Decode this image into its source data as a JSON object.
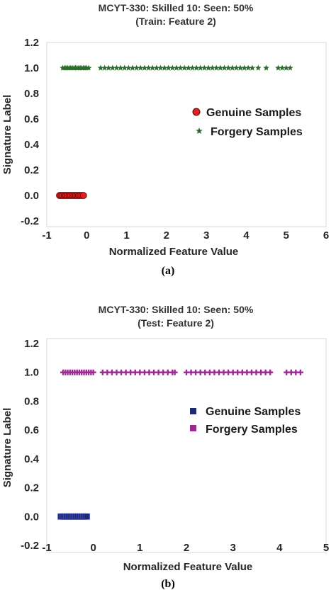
{
  "chart_data": [
    {
      "type": "scatter",
      "title": "MCYT-330:  Skilled 10: Seen: 50%",
      "subtitle": "(Train: Feature 2)",
      "xlabel": "Normalized Feature Value",
      "ylabel": "Signature Label",
      "caption": "(a)",
      "xlim": [
        -1,
        6
      ],
      "ylim": [
        -0.2,
        1.2
      ],
      "xticks": [
        "-1",
        "0",
        "1",
        "2",
        "3",
        "4",
        "5",
        "6"
      ],
      "yticks": [
        "-0.2",
        "0.0",
        "0.2",
        "0.4",
        "0.6",
        "0.8",
        "1.0",
        "1.2"
      ],
      "legend_position": "right",
      "grid": false,
      "series": [
        {
          "name": "Genuine Samples",
          "color": "#e02020",
          "marker": "circle",
          "y": 0,
          "x": [
            -0.68,
            -0.64,
            -0.6,
            -0.56,
            -0.52,
            -0.48,
            -0.44,
            -0.4,
            -0.36,
            -0.32,
            -0.28,
            -0.24,
            -0.2,
            -0.16,
            -0.12,
            -0.08
          ]
        },
        {
          "name": "Forgery Samples",
          "color": "#2e6b2e",
          "marker": "star",
          "y": 1,
          "x": [
            -0.6,
            -0.56,
            -0.52,
            -0.48,
            -0.44,
            -0.4,
            -0.36,
            -0.32,
            -0.28,
            -0.24,
            -0.2,
            -0.16,
            -0.12,
            -0.08,
            -0.04,
            0.0,
            0.05,
            0.35,
            0.45,
            0.55,
            0.65,
            0.75,
            0.85,
            0.95,
            1.05,
            1.15,
            1.25,
            1.35,
            1.45,
            1.55,
            1.65,
            1.75,
            1.85,
            1.95,
            2.05,
            2.15,
            2.25,
            2.35,
            2.45,
            2.55,
            2.65,
            2.75,
            2.85,
            2.95,
            3.05,
            3.15,
            3.25,
            3.35,
            3.45,
            3.55,
            3.65,
            3.75,
            3.85,
            3.95,
            4.05,
            4.15,
            4.3,
            4.5,
            4.8,
            4.9,
            5.0,
            5.1
          ]
        }
      ]
    },
    {
      "type": "scatter",
      "title": "MCYT-330:  Skilled 10: Seen: 50%",
      "subtitle": "(Test: Feature 2)",
      "xlabel": "Normalized Feature Value",
      "ylabel": "Signature Label",
      "caption": "(b)",
      "xlim": [
        -1,
        5
      ],
      "ylim": [
        -0.2,
        1.2
      ],
      "xticks": [
        "-1",
        "0",
        "1",
        "2",
        "3",
        "4",
        "5"
      ],
      "yticks": [
        "-0.2",
        "0.0",
        "0.2",
        "0.4",
        "0.6",
        "0.8",
        "1.0",
        "1.2"
      ],
      "legend_position": "right",
      "grid": false,
      "series": [
        {
          "name": "Genuine Samples",
          "color": "#1f2a6e",
          "marker": "square",
          "y": 0,
          "x": [
            -0.7,
            -0.66,
            -0.62,
            -0.58,
            -0.54,
            -0.5,
            -0.46,
            -0.42,
            -0.38,
            -0.34,
            -0.3,
            -0.26,
            -0.22,
            -0.18,
            -0.14
          ]
        },
        {
          "name": "Forgery Samples",
          "color": "#9b2a8f",
          "marker": "plus",
          "y": 1,
          "x": [
            -0.65,
            -0.6,
            -0.55,
            -0.5,
            -0.45,
            -0.4,
            -0.35,
            -0.3,
            -0.25,
            -0.2,
            -0.15,
            -0.1,
            -0.05,
            0.0,
            0.2,
            0.3,
            0.4,
            0.5,
            0.6,
            0.7,
            0.8,
            0.9,
            1.0,
            1.1,
            1.2,
            1.3,
            1.4,
            1.5,
            1.6,
            1.7,
            1.75,
            2.0,
            2.1,
            2.2,
            2.3,
            2.4,
            2.5,
            2.6,
            2.7,
            2.8,
            2.9,
            3.0,
            3.1,
            3.2,
            3.3,
            3.4,
            3.5,
            3.6,
            3.7,
            3.8,
            4.15,
            4.25,
            4.35,
            4.45
          ]
        }
      ]
    }
  ]
}
